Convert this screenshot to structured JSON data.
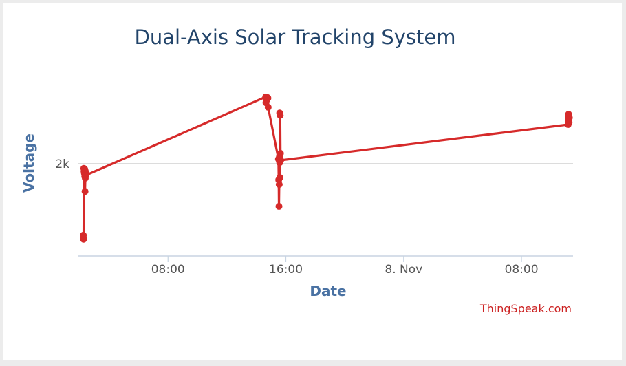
{
  "chart_data": {
    "type": "line",
    "title": "Dual-Axis Solar Tracking System",
    "xlabel": "Date",
    "ylabel": "Voltage",
    "credit": "ThingSpeak.com",
    "x_tick_labels": [
      {
        "t": "2024-11-07 08:00",
        "label": "08:00"
      },
      {
        "t": "2024-11-07 16:00",
        "label": "16:00"
      },
      {
        "t": "2024-11-08 00:00",
        "label": "8. Nov"
      },
      {
        "t": "2024-11-08 08:00",
        "label": "08:00"
      }
    ],
    "y_tick_labels": [
      {
        "v": 2000,
        "label": "2k"
      }
    ],
    "xlim": [
      "2024-11-07 01:55",
      "2024-11-08 11:30"
    ],
    "ylim": [
      1200,
      2800
    ],
    "grid": {
      "x": false,
      "y": true
    },
    "color": "#d62a2a",
    "series": [
      {
        "values": [
          [
            "2024-11-07 02:15",
            1350
          ],
          [
            "2024-11-07 02:15",
            1380
          ],
          [
            "2024-11-07 02:15",
            1360
          ],
          [
            "2024-11-07 02:16",
            1345
          ],
          [
            "2024-11-07 02:17",
            1960
          ],
          [
            "2024-11-07 02:18",
            1935
          ],
          [
            "2024-11-07 02:19",
            1920
          ],
          [
            "2024-11-07 02:20",
            1955
          ],
          [
            "2024-11-07 02:21",
            1910
          ],
          [
            "2024-11-07 02:21",
            1890
          ],
          [
            "2024-11-07 02:22",
            1945
          ],
          [
            "2024-11-07 02:22",
            1760
          ],
          [
            "2024-11-07 02:23",
            1875
          ],
          [
            "2024-11-07 02:24",
            1930
          ],
          [
            "2024-11-07 02:25",
            1900
          ],
          [
            "2024-11-07 14:38",
            2580
          ],
          [
            "2024-11-07 14:39",
            2530
          ],
          [
            "2024-11-07 14:41",
            2560
          ],
          [
            "2024-11-07 14:43",
            2555
          ],
          [
            "2024-11-07 14:45",
            2575
          ],
          [
            "2024-11-07 14:47",
            2570
          ],
          [
            "2024-11-07 14:48",
            2490
          ],
          [
            "2024-11-07 15:30",
            2040
          ],
          [
            "2024-11-07 15:31",
            1860
          ],
          [
            "2024-11-07 15:32",
            1630
          ],
          [
            "2024-11-07 15:33",
            1820
          ],
          [
            "2024-11-07 15:34",
            2060
          ],
          [
            "2024-11-07 15:35",
            2010
          ],
          [
            "2024-11-07 15:35",
            2440
          ],
          [
            "2024-11-07 15:36",
            1880
          ],
          [
            "2024-11-07 15:37",
            2420
          ],
          [
            "2024-11-07 15:38",
            2090
          ],
          [
            "2024-11-07 15:39",
            2030
          ],
          [
            "2024-11-08 11:10",
            2340
          ],
          [
            "2024-11-08 11:11",
            2410
          ],
          [
            "2024-11-08 11:11",
            2380
          ],
          [
            "2024-11-08 11:12",
            2430
          ],
          [
            "2024-11-08 11:13",
            2390
          ],
          [
            "2024-11-08 11:14",
            2360
          ],
          [
            "2024-11-08 11:15",
            2400
          ]
        ]
      }
    ]
  }
}
